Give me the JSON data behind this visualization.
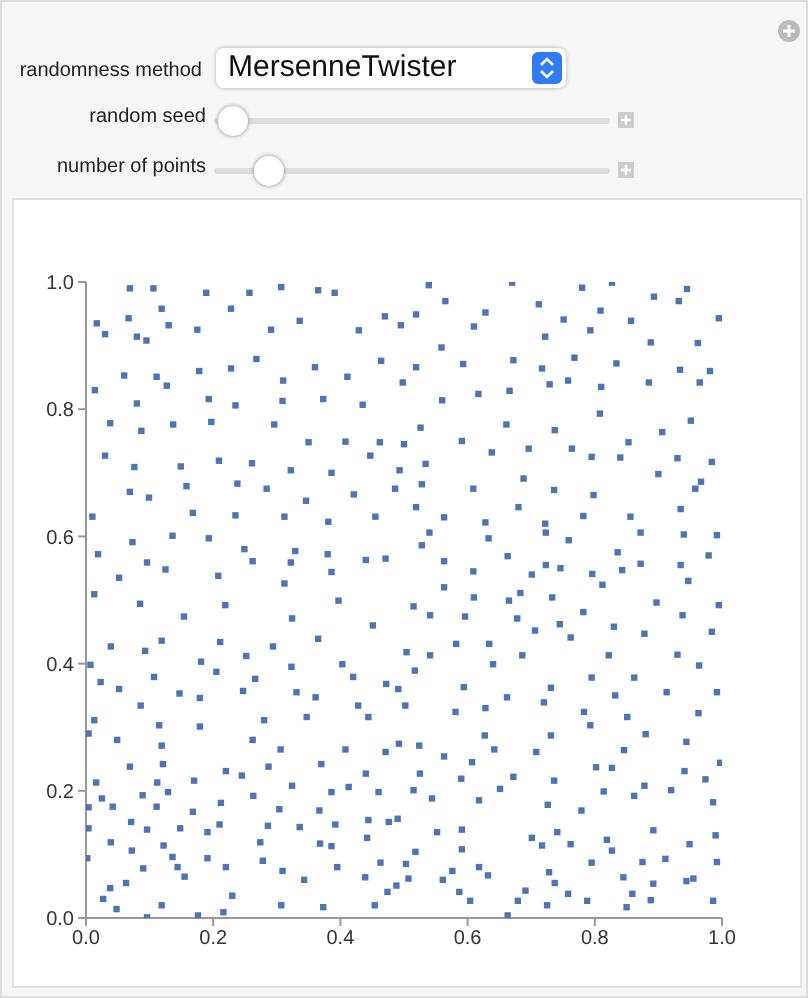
{
  "chart_data": {
    "type": "scatter",
    "marker": "square",
    "grid": false,
    "legend": false,
    "annotations": [
      "randomness method",
      "MersenneTwister",
      "random seed",
      "number of points"
    ],
    "xlim": [
      0,
      1
    ],
    "ylim": [
      0,
      1
    ],
    "xticks": [
      {
        "value": 0,
        "label": "0.0"
      },
      {
        "value": 0.2,
        "label": "0.2"
      },
      {
        "value": 0.4,
        "label": "0.4"
      },
      {
        "value": 0.6,
        "label": "0.6"
      },
      {
        "value": 0.8,
        "label": "0.8"
      },
      {
        "value": 1,
        "label": "1.0"
      }
    ],
    "yticks": [
      {
        "value": 0,
        "label": "0.0"
      },
      {
        "value": 0.2,
        "label": "0.2"
      },
      {
        "value": 0.4,
        "label": "0.4"
      },
      {
        "value": 0.6,
        "label": "0.6"
      },
      {
        "value": 0.8,
        "label": "0.8"
      },
      {
        "value": 1,
        "label": "1.0"
      }
    ],
    "series": [
      {
        "color": "#4f74b3",
        "x": [
          0.069,
          0.106,
          0.017,
          0.03,
          0.067,
          0.119,
          0.189,
          0.257,
          0.307,
          0.365,
          0.391,
          0.13,
          0.08,
          0.095,
          0.175,
          0.228,
          0.291,
          0.336,
          0.429,
          0.47,
          0.06,
          0.111,
          0.178,
          0.228,
          0.268,
          0.31,
          0.36,
          0.411,
          0.464,
          0.014,
          0.08,
          0.127,
          0.193,
          0.235,
          0.309,
          0.373,
          0.435,
          0.038,
          0.087,
          0.137,
          0.197,
          0.296,
          0.35,
          0.408,
          0.462,
          0.03,
          0.076,
          0.149,
          0.209,
          0.261,
          0.322,
          0.386,
          0.447,
          0.069,
          0.099,
          0.158,
          0.238,
          0.284,
          0.346,
          0.421,
          0.486,
          0.01,
          0.168,
          0.235,
          0.312,
          0.381,
          0.455,
          0.019,
          0.073,
          0.136,
          0.193,
          0.249,
          0.329,
          0.38,
          0.44,
          0.096,
          0.262,
          0.322,
          0.052,
          0.125,
          0.208,
          0.312,
          0.386,
          0.471,
          0.539,
          0.67,
          0.712,
          0.78,
          0.827,
          0.893,
          0.945,
          0.995,
          0.519,
          0.565,
          0.628,
          0.751,
          0.809,
          0.857,
          0.932,
          0.495,
          0.559,
          0.61,
          0.722,
          0.793,
          0.888,
          0.962,
          0.519,
          0.593,
          0.672,
          0.717,
          0.768,
          0.834,
          0.934,
          0.981,
          0.498,
          0.56,
          0.617,
          0.666,
          0.729,
          0.758,
          0.81,
          0.885,
          0.965,
          0.526,
          0.591,
          0.661,
          0.737,
          0.808,
          0.853,
          0.906,
          0.951,
          0.984,
          0.5,
          0.534,
          0.638,
          0.696,
          0.764,
          0.795,
          0.84,
          0.93,
          0.967,
          0.493,
          0.528,
          0.609,
          0.688,
          0.736,
          0.798,
          0.9,
          0.958,
          0.519,
          0.563,
          0.628,
          0.68,
          0.722,
          0.782,
          0.856,
          0.935,
          0.992,
          0.54,
          0.633,
          0.723,
          0.759,
          0.872,
          0.94,
          0.528,
          0.563,
          0.663,
          0.723,
          0.796,
          0.836,
          0.872,
          0.935,
          0.979,
          0.609,
          0.701,
          0.746,
          0.843,
          0.947,
          0.563,
          0.683,
          0.812,
          0.013,
          0.085,
          0.219,
          0.324,
          0.397,
          0.154,
          0.039,
          0.119,
          0.211,
          0.294,
          0.365,
          0.451,
          0.007,
          0.093,
          0.181,
          0.252,
          0.323,
          0.403,
          0.023,
          0.107,
          0.205,
          0.266,
          0.331,
          0.42,
          0.472,
          0.052,
          0.147,
          0.247,
          0.361,
          0.428,
          0.086,
          0.013,
          0.115,
          0.179,
          0.28,
          0.347,
          0.444,
          0.004,
          0.049,
          0.119,
          0.179,
          0.262,
          0.306,
          0.408,
          0.471,
          0.069,
          0.121,
          0.22,
          0.287,
          0.37,
          0.44,
          0.016,
          0.112,
          0.17,
          0.245,
          0.324,
          0.413,
          0.492,
          0.025,
          0.089,
          0.129,
          0.212,
          0.263,
          0.386,
          0.46,
          0.004,
          0.042,
          0.111,
          0.168,
          0.304,
          0.367,
          0.444,
          0.071,
          0.148,
          0.21,
          0.286,
          0.336,
          0.392,
          0.476,
          0.004,
          0.039,
          0.096,
          0.122,
          0.191,
          0.274,
          0.368,
          0.442,
          0.072,
          0.136,
          0.191,
          0.278,
          0.386,
          0.463,
          0.002,
          0.09,
          0.144,
          0.22,
          0.309,
          0.395,
          0.038,
          0.063,
          0.155,
          0.23,
          0.343,
          0.439,
          0.474,
          0.027,
          0.048,
          0.119,
          0.176,
          0.216,
          0.307,
          0.373,
          0.454,
          0.096,
          0.515,
          0.61,
          0.665,
          0.733,
          0.782,
          0.83,
          0.897,
          0.938,
          0.995,
          0.541,
          0.596,
          0.678,
          0.745,
          0.878,
          0.504,
          0.582,
          0.634,
          0.706,
          0.762,
          0.822,
          0.93,
          0.984,
          0.517,
          0.541,
          0.64,
          0.686,
          0.795,
          0.862,
          0.964,
          0.491,
          0.594,
          0.662,
          0.731,
          0.832,
          0.913,
          0.992,
          0.502,
          0.581,
          0.628,
          0.72,
          0.783,
          0.851,
          0.963,
          0.793,
          0.88,
          0.944,
          0.524,
          0.627,
          0.731,
          0.846,
          0.563,
          0.642,
          0.708,
          0.802,
          0.941,
          0.997,
          0.525,
          0.607,
          0.672,
          0.736,
          0.827,
          0.878,
          0.974,
          0.515,
          0.59,
          0.651,
          0.814,
          0.92,
          0.544,
          0.618,
          0.726,
          0.779,
          0.862,
          0.986,
          0.49,
          0.552,
          0.591,
          0.701,
          0.741,
          0.762,
          0.819,
          0.892,
          0.949,
          0.99,
          0.518,
          0.591,
          0.717,
          0.827,
          0.911,
          0.503,
          0.576,
          0.618,
          0.728,
          0.795,
          0.875,
          0.992,
          0.507,
          0.561,
          0.632,
          0.737,
          0.845,
          0.892,
          0.955,
          0.488,
          0.587,
          0.691,
          0.758,
          0.859,
          0.944,
          0.604,
          0.679,
          0.725,
          0.788,
          0.888,
          0.986,
          0.663,
          0.85
        ],
        "values": [
          0.99,
          0.99,
          0.935,
          0.918,
          0.943,
          0.958,
          0.983,
          0.983,
          0.992,
          0.987,
          0.983,
          0.932,
          0.914,
          0.908,
          0.925,
          0.958,
          0.925,
          0.939,
          0.924,
          0.946,
          0.853,
          0.851,
          0.86,
          0.864,
          0.879,
          0.845,
          0.866,
          0.851,
          0.876,
          0.83,
          0.809,
          0.837,
          0.816,
          0.806,
          0.813,
          0.816,
          0.807,
          0.778,
          0.766,
          0.776,
          0.78,
          0.776,
          0.748,
          0.749,
          0.748,
          0.727,
          0.709,
          0.71,
          0.719,
          0.715,
          0.704,
          0.7,
          0.727,
          0.67,
          0.661,
          0.679,
          0.683,
          0.675,
          0.656,
          0.666,
          0.675,
          0.631,
          0.637,
          0.633,
          0.631,
          0.623,
          0.631,
          0.572,
          0.591,
          0.601,
          0.597,
          0.58,
          0.577,
          0.572,
          0.563,
          0.559,
          0.561,
          0.559,
          0.535,
          0.548,
          0.538,
          0.526,
          0.544,
          0.565,
          0.995,
          0.999,
          0.965,
          0.991,
          0.999,
          0.977,
          0.989,
          0.943,
          0.949,
          0.97,
          0.952,
          0.941,
          0.955,
          0.939,
          0.97,
          0.932,
          0.897,
          0.93,
          0.914,
          0.924,
          0.905,
          0.904,
          0.866,
          0.871,
          0.877,
          0.864,
          0.881,
          0.872,
          0.862,
          0.86,
          0.842,
          0.814,
          0.824,
          0.829,
          0.839,
          0.845,
          0.835,
          0.842,
          0.842,
          0.771,
          0.75,
          0.776,
          0.767,
          0.793,
          0.748,
          0.764,
          0.782,
          0.717,
          0.745,
          0.714,
          0.732,
          0.738,
          0.738,
          0.725,
          0.724,
          0.723,
          0.686,
          0.704,
          0.682,
          0.675,
          0.691,
          0.673,
          0.665,
          0.698,
          0.675,
          0.646,
          0.63,
          0.622,
          0.646,
          0.62,
          0.632,
          0.631,
          0.643,
          0.602,
          0.606,
          0.597,
          0.606,
          0.594,
          0.606,
          0.603,
          0.586,
          0.561,
          0.569,
          0.555,
          0.541,
          0.575,
          0.557,
          0.555,
          0.57,
          0.545,
          0.54,
          0.55,
          0.547,
          0.53,
          0.52,
          0.511,
          0.524,
          0.509,
          0.494,
          0.492,
          0.471,
          0.499,
          0.474,
          0.427,
          0.436,
          0.434,
          0.427,
          0.439,
          0.46,
          0.398,
          0.42,
          0.403,
          0.412,
          0.395,
          0.399,
          0.371,
          0.379,
          0.387,
          0.376,
          0.355,
          0.379,
          0.368,
          0.36,
          0.353,
          0.357,
          0.347,
          0.334,
          0.334,
          0.311,
          0.303,
          0.346,
          0.311,
          0.316,
          0.316,
          0.29,
          0.28,
          0.271,
          0.301,
          0.28,
          0.265,
          0.265,
          0.261,
          0.238,
          0.242,
          0.231,
          0.238,
          0.242,
          0.227,
          0.213,
          0.213,
          0.216,
          0.224,
          0.208,
          0.206,
          0.274,
          0.188,
          0.193,
          0.198,
          0.181,
          0.192,
          0.198,
          0.198,
          0.174,
          0.175,
          0.175,
          0.167,
          0.171,
          0.169,
          0.154,
          0.151,
          0.141,
          0.147,
          0.145,
          0.143,
          0.147,
          0.151,
          0.141,
          0.119,
          0.139,
          0.114,
          0.135,
          0.119,
          0.117,
          0.126,
          0.106,
          0.096,
          0.094,
          0.09,
          0.113,
          0.087,
          0.094,
          0.078,
          0.08,
          0.08,
          0.074,
          0.08,
          0.047,
          0.055,
          0.065,
          0.035,
          0.06,
          0.064,
          0.041,
          0.03,
          0.014,
          0.02,
          0.004,
          0.009,
          0.02,
          0.017,
          0.02,
          0.001,
          0.49,
          0.504,
          0.499,
          0.504,
          0.481,
          0.458,
          0.496,
          0.476,
          0.492,
          0.476,
          0.474,
          0.471,
          0.462,
          0.447,
          0.418,
          0.431,
          0.431,
          0.452,
          0.441,
          0.413,
          0.414,
          0.45,
          0.389,
          0.413,
          0.399,
          0.413,
          0.378,
          0.378,
          0.397,
          0.36,
          0.363,
          0.347,
          0.362,
          0.35,
          0.355,
          0.355,
          0.334,
          0.324,
          0.33,
          0.339,
          0.324,
          0.316,
          0.322,
          0.303,
          0.289,
          0.277,
          0.271,
          0.287,
          0.287,
          0.264,
          0.254,
          0.265,
          0.261,
          0.237,
          0.231,
          0.244,
          0.227,
          0.245,
          0.222,
          0.216,
          0.236,
          0.208,
          0.218,
          0.201,
          0.219,
          0.203,
          0.199,
          0.201,
          0.188,
          0.185,
          0.178,
          0.169,
          0.192,
          0.182,
          0.156,
          0.135,
          0.139,
          0.126,
          0.135,
          0.116,
          0.123,
          0.138,
          0.116,
          0.13,
          0.104,
          0.108,
          0.114,
          0.106,
          0.093,
          0.085,
          0.074,
          0.08,
          0.072,
          0.087,
          0.088,
          0.088,
          0.062,
          0.06,
          0.067,
          0.055,
          0.064,
          0.054,
          0.062,
          0.051,
          0.041,
          0.043,
          0.038,
          0.038,
          0.058,
          0.027,
          0.027,
          0.02,
          0.027,
          0.028,
          0.027,
          0.004,
          0.017
        ]
      }
    ]
  }
}
